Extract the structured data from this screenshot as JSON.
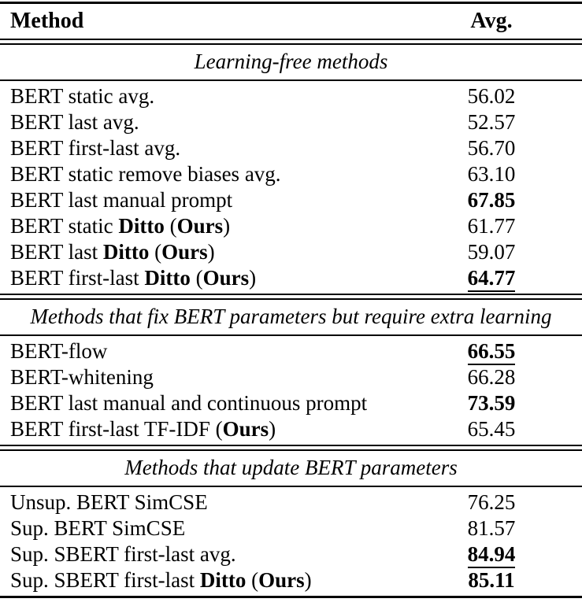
{
  "colors": {
    "text": "#000000",
    "background": "#ffffff",
    "rule": "#000000"
  },
  "table": {
    "header": {
      "method_label": "Method",
      "avg_label": "Avg."
    },
    "sections": [
      {
        "title": "Learning-free methods",
        "rows": [
          {
            "segments": [
              {
                "t": "BERT static avg.",
                "b": false
              }
            ],
            "value": "56.02",
            "bold": false,
            "underline": false
          },
          {
            "segments": [
              {
                "t": "BERT last avg.",
                "b": false
              }
            ],
            "value": "52.57",
            "bold": false,
            "underline": false
          },
          {
            "segments": [
              {
                "t": "BERT first-last avg.",
                "b": false
              }
            ],
            "value": "56.70",
            "bold": false,
            "underline": false
          },
          {
            "segments": [
              {
                "t": "BERT static remove biases avg.",
                "b": false
              }
            ],
            "value": "63.10",
            "bold": false,
            "underline": false
          },
          {
            "segments": [
              {
                "t": "BERT last manual prompt",
                "b": false
              }
            ],
            "value": "67.85",
            "bold": true,
            "underline": false
          },
          {
            "segments": [
              {
                "t": "BERT static ",
                "b": false
              },
              {
                "t": "Ditto",
                "b": true
              },
              {
                "t": " (",
                "b": false
              },
              {
                "t": "Ours",
                "b": true
              },
              {
                "t": ")",
                "b": false
              }
            ],
            "value": "61.77",
            "bold": false,
            "underline": false
          },
          {
            "segments": [
              {
                "t": "BERT last ",
                "b": false
              },
              {
                "t": "Ditto",
                "b": true
              },
              {
                "t": " (",
                "b": false
              },
              {
                "t": "Ours",
                "b": true
              },
              {
                "t": ")",
                "b": false
              }
            ],
            "value": "59.07",
            "bold": false,
            "underline": false
          },
          {
            "segments": [
              {
                "t": "BERT first-last ",
                "b": false
              },
              {
                "t": "Ditto",
                "b": true
              },
              {
                "t": " (",
                "b": false
              },
              {
                "t": "Ours",
                "b": true
              },
              {
                "t": ")",
                "b": false
              }
            ],
            "value": "64.77",
            "bold": true,
            "underline": true
          }
        ]
      },
      {
        "title": "Methods that fix BERT parameters but require extra learning",
        "rows": [
          {
            "segments": [
              {
                "t": "BERT-flow",
                "b": false
              }
            ],
            "value": "66.55",
            "bold": true,
            "underline": true
          },
          {
            "segments": [
              {
                "t": "BERT-whitening",
                "b": false
              }
            ],
            "value": "66.28",
            "bold": false,
            "underline": false
          },
          {
            "segments": [
              {
                "t": "BERT last manual and continuous prompt",
                "b": false
              }
            ],
            "value": "73.59",
            "bold": true,
            "underline": false
          },
          {
            "segments": [
              {
                "t": "BERT first-last TF-IDF (",
                "b": false
              },
              {
                "t": "Ours",
                "b": true
              },
              {
                "t": ")",
                "b": false
              }
            ],
            "value": "65.45",
            "bold": false,
            "underline": false
          }
        ]
      },
      {
        "title": "Methods that update BERT parameters",
        "rows": [
          {
            "segments": [
              {
                "t": "Unsup. BERT SimCSE",
                "b": false
              }
            ],
            "value": "76.25",
            "bold": false,
            "underline": false
          },
          {
            "segments": [
              {
                "t": "Sup. BERT SimCSE",
                "b": false
              }
            ],
            "value": "81.57",
            "bold": false,
            "underline": false
          },
          {
            "segments": [
              {
                "t": "Sup. SBERT first-last avg.",
                "b": false
              }
            ],
            "value": "84.94",
            "bold": true,
            "underline": true
          },
          {
            "segments": [
              {
                "t": "Sup. SBERT first-last ",
                "b": false
              },
              {
                "t": "Ditto",
                "b": true
              },
              {
                "t": " (",
                "b": false
              },
              {
                "t": "Ours",
                "b": true
              },
              {
                "t": ")",
                "b": false
              }
            ],
            "value": "85.11",
            "bold": true,
            "underline": false
          }
        ]
      }
    ]
  }
}
